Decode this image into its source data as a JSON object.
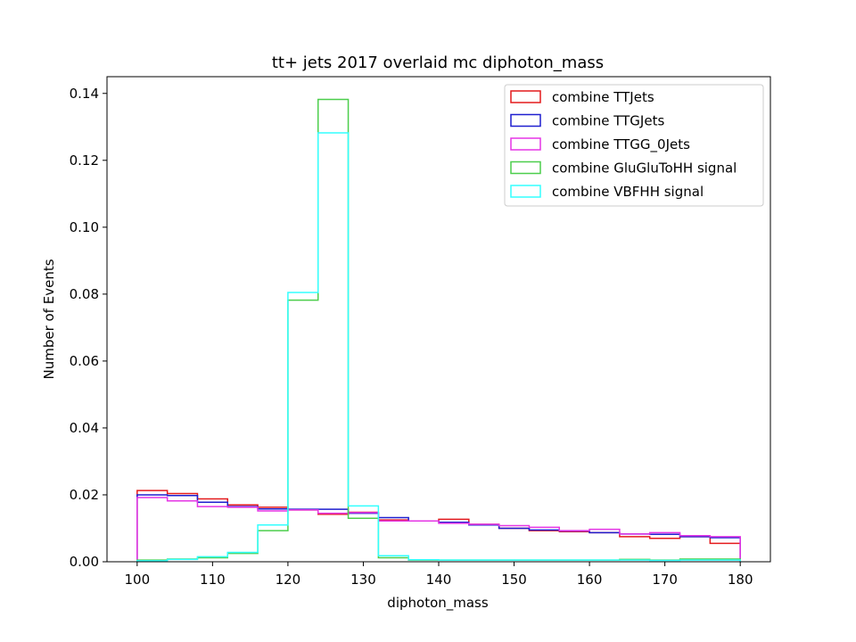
{
  "chart_data": {
    "type": "step-histogram",
    "title": "tt+ jets 2017 overlaid mc diphoton_mass",
    "xlabel": "diphoton_mass",
    "ylabel": "Number of Events",
    "xlim": [
      96,
      184
    ],
    "ylim": [
      0,
      0.145
    ],
    "xticks": [
      100,
      110,
      120,
      130,
      140,
      150,
      160,
      170,
      180
    ],
    "yticks": [
      0.0,
      0.02,
      0.04,
      0.06,
      0.08,
      0.1,
      0.12,
      0.14
    ],
    "ytick_labels": [
      "0.00",
      "0.02",
      "0.04",
      "0.06",
      "0.08",
      "0.10",
      "0.12",
      "0.14"
    ],
    "grid": false,
    "legend_position": "top-right",
    "bin_edges": [
      100,
      104,
      108,
      112,
      116,
      120,
      124,
      128,
      132,
      136,
      140,
      144,
      148,
      152,
      156,
      160,
      164,
      168,
      172,
      176,
      180
    ],
    "series": [
      {
        "name": "combine TTJets",
        "color": "#e41a1c",
        "values": [
          0.0213,
          0.0204,
          0.0188,
          0.017,
          0.0163,
          0.0155,
          0.0142,
          0.0148,
          0.0125,
          0.0122,
          0.0127,
          0.0112,
          0.01,
          0.0093,
          0.009,
          0.0087,
          0.0075,
          0.007,
          0.0075,
          0.0055
        ]
      },
      {
        "name": "combine TTGJets",
        "color": "#1f1fcf",
        "values": [
          0.02,
          0.0198,
          0.0178,
          0.0165,
          0.0158,
          0.0157,
          0.0157,
          0.0145,
          0.0132,
          0.0122,
          0.0118,
          0.011,
          0.01,
          0.0095,
          0.0092,
          0.0087,
          0.0083,
          0.0082,
          0.0075,
          0.0072
        ]
      },
      {
        "name": "combine TTGG_0Jets",
        "color": "#e535e5",
        "values": [
          0.0192,
          0.0182,
          0.0165,
          0.0163,
          0.0152,
          0.0155,
          0.0145,
          0.0147,
          0.0122,
          0.0122,
          0.0115,
          0.0112,
          0.0108,
          0.0103,
          0.0093,
          0.0097,
          0.0083,
          0.0087,
          0.0078,
          0.0075
        ]
      },
      {
        "name": "combine GluGluToHH signal",
        "color": "#4cce4c",
        "values": [
          0.0005,
          0.0008,
          0.0012,
          0.0025,
          0.0093,
          0.0782,
          0.1382,
          0.013,
          0.0012,
          0.0005,
          0.0005,
          0.0005,
          0.0005,
          0.0005,
          0.0005,
          0.0005,
          0.0007,
          0.0005,
          0.0008,
          0.0008
        ]
      },
      {
        "name": "combine VBFHH signal",
        "color": "#33ffff",
        "values": [
          0.0003,
          0.0007,
          0.0015,
          0.0028,
          0.011,
          0.0805,
          0.1282,
          0.0167,
          0.0018,
          0.0006,
          0.0005,
          0.0005,
          0.0005,
          0.0005,
          0.0005,
          0.0005,
          0.0005,
          0.0004,
          0.0005,
          0.0005
        ]
      }
    ]
  }
}
